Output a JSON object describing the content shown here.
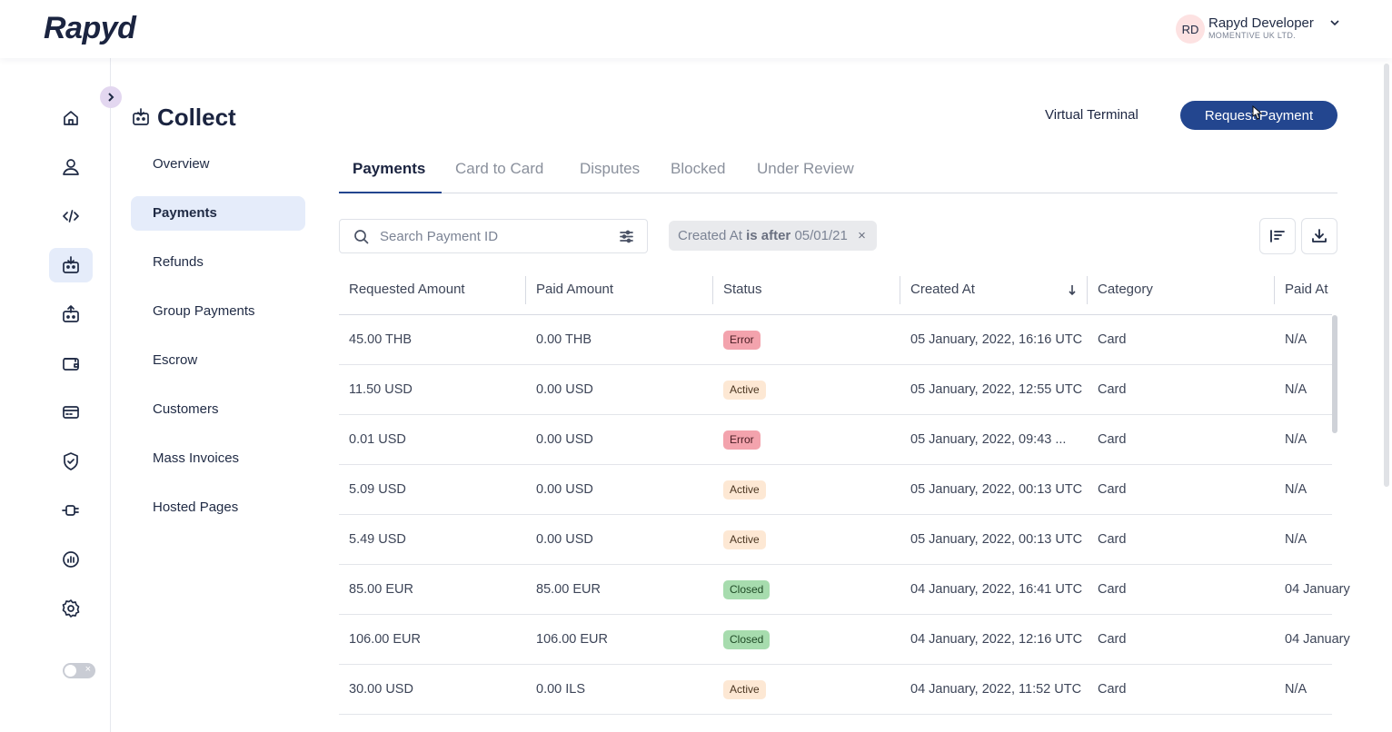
{
  "brand": {
    "logo_text": "Rapyd"
  },
  "user": {
    "initials": "RD",
    "name": "Rapyd Developer",
    "org": "MOMENTIVE UK LTD."
  },
  "rail": {
    "items": [
      {
        "icon": "home-icon"
      },
      {
        "icon": "user-icon"
      },
      {
        "icon": "code-icon"
      },
      {
        "icon": "collect-icon",
        "active": true
      },
      {
        "icon": "disburse-icon"
      },
      {
        "icon": "wallet-icon"
      },
      {
        "icon": "card-icon"
      },
      {
        "icon": "shield-check-icon"
      },
      {
        "icon": "plug-icon"
      },
      {
        "icon": "reports-icon"
      },
      {
        "icon": "settings-icon"
      }
    ]
  },
  "section": {
    "title": "Collect",
    "nav": [
      {
        "label": "Overview"
      },
      {
        "label": "Payments",
        "active": true
      },
      {
        "label": "Refunds"
      },
      {
        "label": "Group Payments"
      },
      {
        "label": "Escrow"
      },
      {
        "label": "Customers"
      },
      {
        "label": "Mass Invoices"
      },
      {
        "label": "Hosted Pages"
      }
    ]
  },
  "actions": {
    "virtual_terminal": "Virtual Terminal",
    "request_payment": "Request Payment"
  },
  "tabs": [
    {
      "label": "Payments",
      "active": true
    },
    {
      "label": "Card to Card"
    },
    {
      "label": "Disputes"
    },
    {
      "label": "Blocked"
    },
    {
      "label": "Under Review"
    }
  ],
  "search": {
    "placeholder": "Search Payment ID",
    "value": ""
  },
  "filter_chip": {
    "field": "Created At",
    "operator": "is after",
    "value": "05/01/21"
  },
  "table": {
    "columns": [
      "Requested Amount",
      "Paid Amount",
      "Status",
      "Created At",
      "Category",
      "Paid At"
    ],
    "sorted_column": "Created At",
    "rows": [
      {
        "requested": "45.00 THB",
        "paid": "0.00 THB",
        "status": "Error",
        "created": "05 January, 2022, 16:16 UTC",
        "category": "Card",
        "paid_at": "N/A"
      },
      {
        "requested": "11.50 USD",
        "paid": "0.00 USD",
        "status": "Active",
        "created": "05 January, 2022, 12:55 UTC",
        "category": "Card",
        "paid_at": "N/A"
      },
      {
        "requested": "0.01 USD",
        "paid": "0.00 USD",
        "status": "Error",
        "created": "05 January, 2022, 09:43 ...",
        "category": "Card",
        "paid_at": "N/A"
      },
      {
        "requested": "5.09 USD",
        "paid": "0.00 USD",
        "status": "Active",
        "created": "05 January, 2022, 00:13 UTC",
        "category": "Card",
        "paid_at": "N/A"
      },
      {
        "requested": "5.49 USD",
        "paid": "0.00 USD",
        "status": "Active",
        "created": "05 January, 2022, 00:13 UTC",
        "category": "Card",
        "paid_at": "N/A"
      },
      {
        "requested": "85.00 EUR",
        "paid": "85.00 EUR",
        "status": "Closed",
        "created": "04 January, 2022, 16:41 UTC",
        "category": "Card",
        "paid_at": "04 January"
      },
      {
        "requested": "106.00 EUR",
        "paid": "106.00 EUR",
        "status": "Closed",
        "created": "04 January, 2022, 12:16 UTC",
        "category": "Card",
        "paid_at": "04 January"
      },
      {
        "requested": "30.00 USD",
        "paid": "0.00 ILS",
        "status": "Active",
        "created": "04 January, 2022, 11:52 UTC",
        "category": "Card",
        "paid_at": "N/A"
      }
    ]
  },
  "colors": {
    "primary": "#23468f",
    "active_bg": "#e5ecfa",
    "error": "#f3a3ad",
    "active": "#fde8d4",
    "closed": "#a7dcae"
  }
}
